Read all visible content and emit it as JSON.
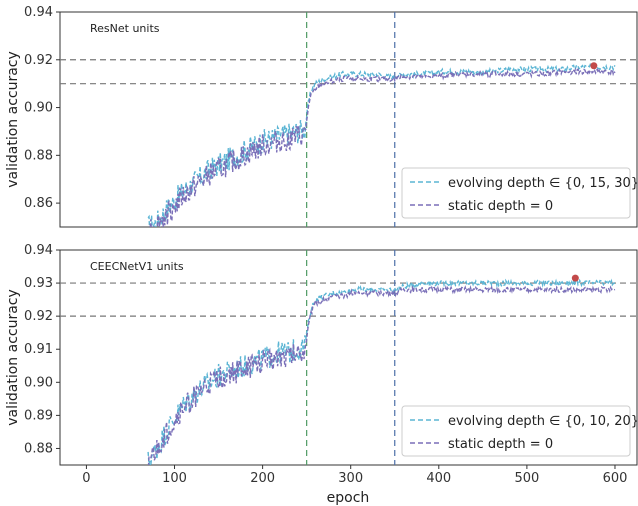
{
  "chart_data": [
    {
      "type": "line",
      "title": "ResNet units",
      "xlabel": "epoch",
      "ylabel": "validation accuracy",
      "xlim": [
        -30,
        625
      ],
      "ylim": [
        0.85,
        0.94
      ],
      "xticks": [
        0,
        100,
        200,
        300,
        400,
        500,
        600
      ],
      "yticks": [
        0.86,
        0.88,
        0.9,
        0.92,
        0.94
      ],
      "ytick_labels": [
        "0.86",
        "0.88",
        "0.90",
        "0.92",
        "0.94"
      ],
      "grid": false,
      "legend_position": "bottom-right",
      "hlines": [
        0.92,
        0.91
      ],
      "vlines": [
        {
          "x": 250,
          "color": "#4f9a63"
        },
        {
          "x": 350,
          "color": "#4d6fa8"
        }
      ],
      "marker": {
        "x": 576,
        "y": 0.9175,
        "color": "#c24a4a"
      },
      "series": [
        {
          "name": "evolving depth ∈ {0, 15, 30}",
          "color": "#5bb5d4",
          "x": [
            70,
            80,
            90,
            100,
            110,
            120,
            130,
            140,
            150,
            160,
            170,
            180,
            190,
            200,
            210,
            220,
            230,
            240,
            248,
            252,
            255,
            260,
            270,
            280,
            290,
            300,
            310,
            320,
            330,
            340,
            350,
            360,
            380,
            400,
            420,
            440,
            460,
            480,
            500,
            520,
            540,
            560,
            580,
            600
          ],
          "y": [
            0.85,
            0.852,
            0.857,
            0.861,
            0.865,
            0.868,
            0.871,
            0.874,
            0.876,
            0.878,
            0.88,
            0.882,
            0.884,
            0.886,
            0.887,
            0.888,
            0.889,
            0.89,
            0.891,
            0.902,
            0.907,
            0.91,
            0.912,
            0.913,
            0.914,
            0.914,
            0.914,
            0.914,
            0.914,
            0.913,
            0.913,
            0.914,
            0.914,
            0.915,
            0.915,
            0.915,
            0.915,
            0.916,
            0.916,
            0.916,
            0.916,
            0.917,
            0.917,
            0.917
          ]
        },
        {
          "name": "static depth = 0",
          "color": "#7a6fb8",
          "x": [
            70,
            80,
            90,
            100,
            110,
            120,
            130,
            140,
            150,
            160,
            170,
            180,
            190,
            200,
            210,
            220,
            230,
            240,
            248,
            252,
            255,
            260,
            270,
            280,
            290,
            300,
            310,
            320,
            330,
            340,
            350,
            360,
            380,
            400,
            420,
            440,
            460,
            480,
            500,
            520,
            540,
            560,
            580,
            600
          ],
          "y": [
            0.85,
            0.851,
            0.855,
            0.859,
            0.863,
            0.866,
            0.869,
            0.872,
            0.874,
            0.876,
            0.878,
            0.88,
            0.882,
            0.884,
            0.885,
            0.886,
            0.887,
            0.888,
            0.889,
            0.9,
            0.905,
            0.908,
            0.91,
            0.911,
            0.912,
            0.912,
            0.912,
            0.912,
            0.912,
            0.912,
            0.912,
            0.913,
            0.913,
            0.913,
            0.914,
            0.914,
            0.914,
            0.914,
            0.914,
            0.914,
            0.915,
            0.915,
            0.915,
            0.915
          ]
        }
      ]
    },
    {
      "type": "line",
      "title": "CEECNetV1 units",
      "xlabel": "epoch",
      "ylabel": "validation accuracy",
      "xlim": [
        -30,
        625
      ],
      "ylim": [
        0.875,
        0.94
      ],
      "xticks": [
        0,
        100,
        200,
        300,
        400,
        500,
        600
      ],
      "xtick_labels": [
        "0",
        "100",
        "200",
        "300",
        "400",
        "500",
        "600"
      ],
      "yticks": [
        0.88,
        0.89,
        0.9,
        0.91,
        0.92,
        0.93,
        0.94
      ],
      "ytick_labels": [
        "0.88",
        "0.89",
        "0.90",
        "0.91",
        "0.92",
        "0.93",
        "0.94"
      ],
      "grid": false,
      "legend_position": "bottom-right",
      "hlines": [
        0.93,
        0.92
      ],
      "vlines": [
        {
          "x": 250,
          "color": "#4f9a63"
        },
        {
          "x": 350,
          "color": "#4d6fa8"
        }
      ],
      "marker": {
        "x": 555,
        "y": 0.9315,
        "color": "#c24a4a"
      },
      "series": [
        {
          "name": "evolving depth ∈ {0, 10, 20}",
          "color": "#5bb5d4",
          "x": [
            70,
            80,
            90,
            100,
            110,
            120,
            130,
            140,
            150,
            160,
            170,
            180,
            190,
            200,
            210,
            220,
            230,
            240,
            248,
            252,
            255,
            260,
            270,
            280,
            290,
            300,
            310,
            320,
            330,
            340,
            350,
            360,
            380,
            400,
            420,
            440,
            460,
            480,
            500,
            520,
            540,
            560,
            580,
            600
          ],
          "y": [
            0.876,
            0.88,
            0.885,
            0.889,
            0.893,
            0.896,
            0.898,
            0.9,
            0.902,
            0.903,
            0.904,
            0.905,
            0.906,
            0.907,
            0.908,
            0.909,
            0.909,
            0.91,
            0.911,
            0.918,
            0.922,
            0.925,
            0.926,
            0.927,
            0.927,
            0.928,
            0.928,
            0.928,
            0.928,
            0.928,
            0.928,
            0.929,
            0.93,
            0.93,
            0.93,
            0.93,
            0.93,
            0.93,
            0.93,
            0.93,
            0.93,
            0.93,
            0.93,
            0.93
          ]
        },
        {
          "name": "static depth = 0",
          "color": "#7a6fb8",
          "x": [
            70,
            80,
            90,
            100,
            110,
            120,
            130,
            140,
            150,
            160,
            170,
            180,
            190,
            200,
            210,
            220,
            230,
            240,
            248,
            252,
            255,
            260,
            270,
            280,
            290,
            300,
            310,
            320,
            330,
            340,
            350,
            360,
            380,
            400,
            420,
            440,
            460,
            480,
            500,
            520,
            540,
            560,
            580,
            600
          ],
          "y": [
            0.876,
            0.879,
            0.884,
            0.888,
            0.892,
            0.895,
            0.897,
            0.899,
            0.901,
            0.902,
            0.903,
            0.904,
            0.905,
            0.906,
            0.907,
            0.908,
            0.908,
            0.909,
            0.91,
            0.917,
            0.921,
            0.924,
            0.925,
            0.926,
            0.926,
            0.927,
            0.927,
            0.927,
            0.927,
            0.927,
            0.927,
            0.928,
            0.928,
            0.928,
            0.928,
            0.928,
            0.928,
            0.928,
            0.928,
            0.928,
            0.928,
            0.928,
            0.928,
            0.928
          ]
        }
      ]
    }
  ]
}
